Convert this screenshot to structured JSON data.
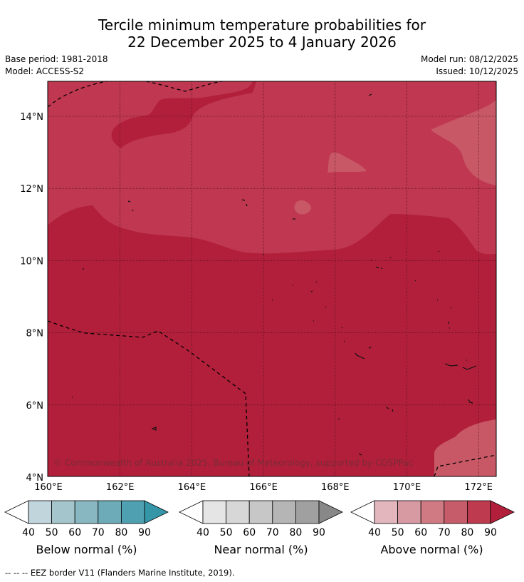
{
  "title": {
    "line1": "Tercile minimum temperature probabilities for",
    "line2": "22 December 2025 to 4 January 2026"
  },
  "meta": {
    "base_period": "Base period: 1981-2018",
    "model": "Model: ACCESS-S2",
    "model_run": "Model run: 08/12/2025",
    "issued": "Issued: 10/12/2025"
  },
  "map": {
    "lat_labels": [
      "14°N",
      "12°N",
      "10°N",
      "8°N",
      "6°N",
      "4°N"
    ],
    "lon_labels": [
      "160°E",
      "162°E",
      "164°E",
      "166°E",
      "168°E",
      "170°E",
      "172°E"
    ],
    "copyright": "© Commonwealth of Australia 2025, Bureau of Meteorology, supported by COSPPac",
    "colors": {
      "above_80_90": "#b21f3a",
      "above_70_80": "#bf3750",
      "above_60_70": "#c85866"
    }
  },
  "colorbars": [
    {
      "label": "Below normal (%)",
      "ticks": [
        "40",
        "50",
        "60",
        "70",
        "80",
        "90"
      ],
      "colors": [
        "#ffffff",
        "#c0d6dc",
        "#a4c5cb",
        "#89b7c1",
        "#6cabb7",
        "#4fa0b0",
        "#3596a8"
      ]
    },
    {
      "label": "Near normal (%)",
      "ticks": [
        "40",
        "50",
        "60",
        "70",
        "80",
        "90"
      ],
      "colors": [
        "#ffffff",
        "#e5e5e5",
        "#d7d7d7",
        "#c7c7c7",
        "#b5b5b5",
        "#a0a0a0",
        "#888888"
      ]
    },
    {
      "label": "Above normal (%)",
      "ticks": [
        "40",
        "50",
        "60",
        "70",
        "80",
        "90"
      ],
      "colors": [
        "#ffffff",
        "#e3b6bd",
        "#d89aa2",
        "#d07b84",
        "#c65c69",
        "#bd3a4f",
        "#b21f3a"
      ]
    }
  ],
  "footer": "--  --  -- EEZ border V11 (Flanders Marine Institute, 2019)."
}
